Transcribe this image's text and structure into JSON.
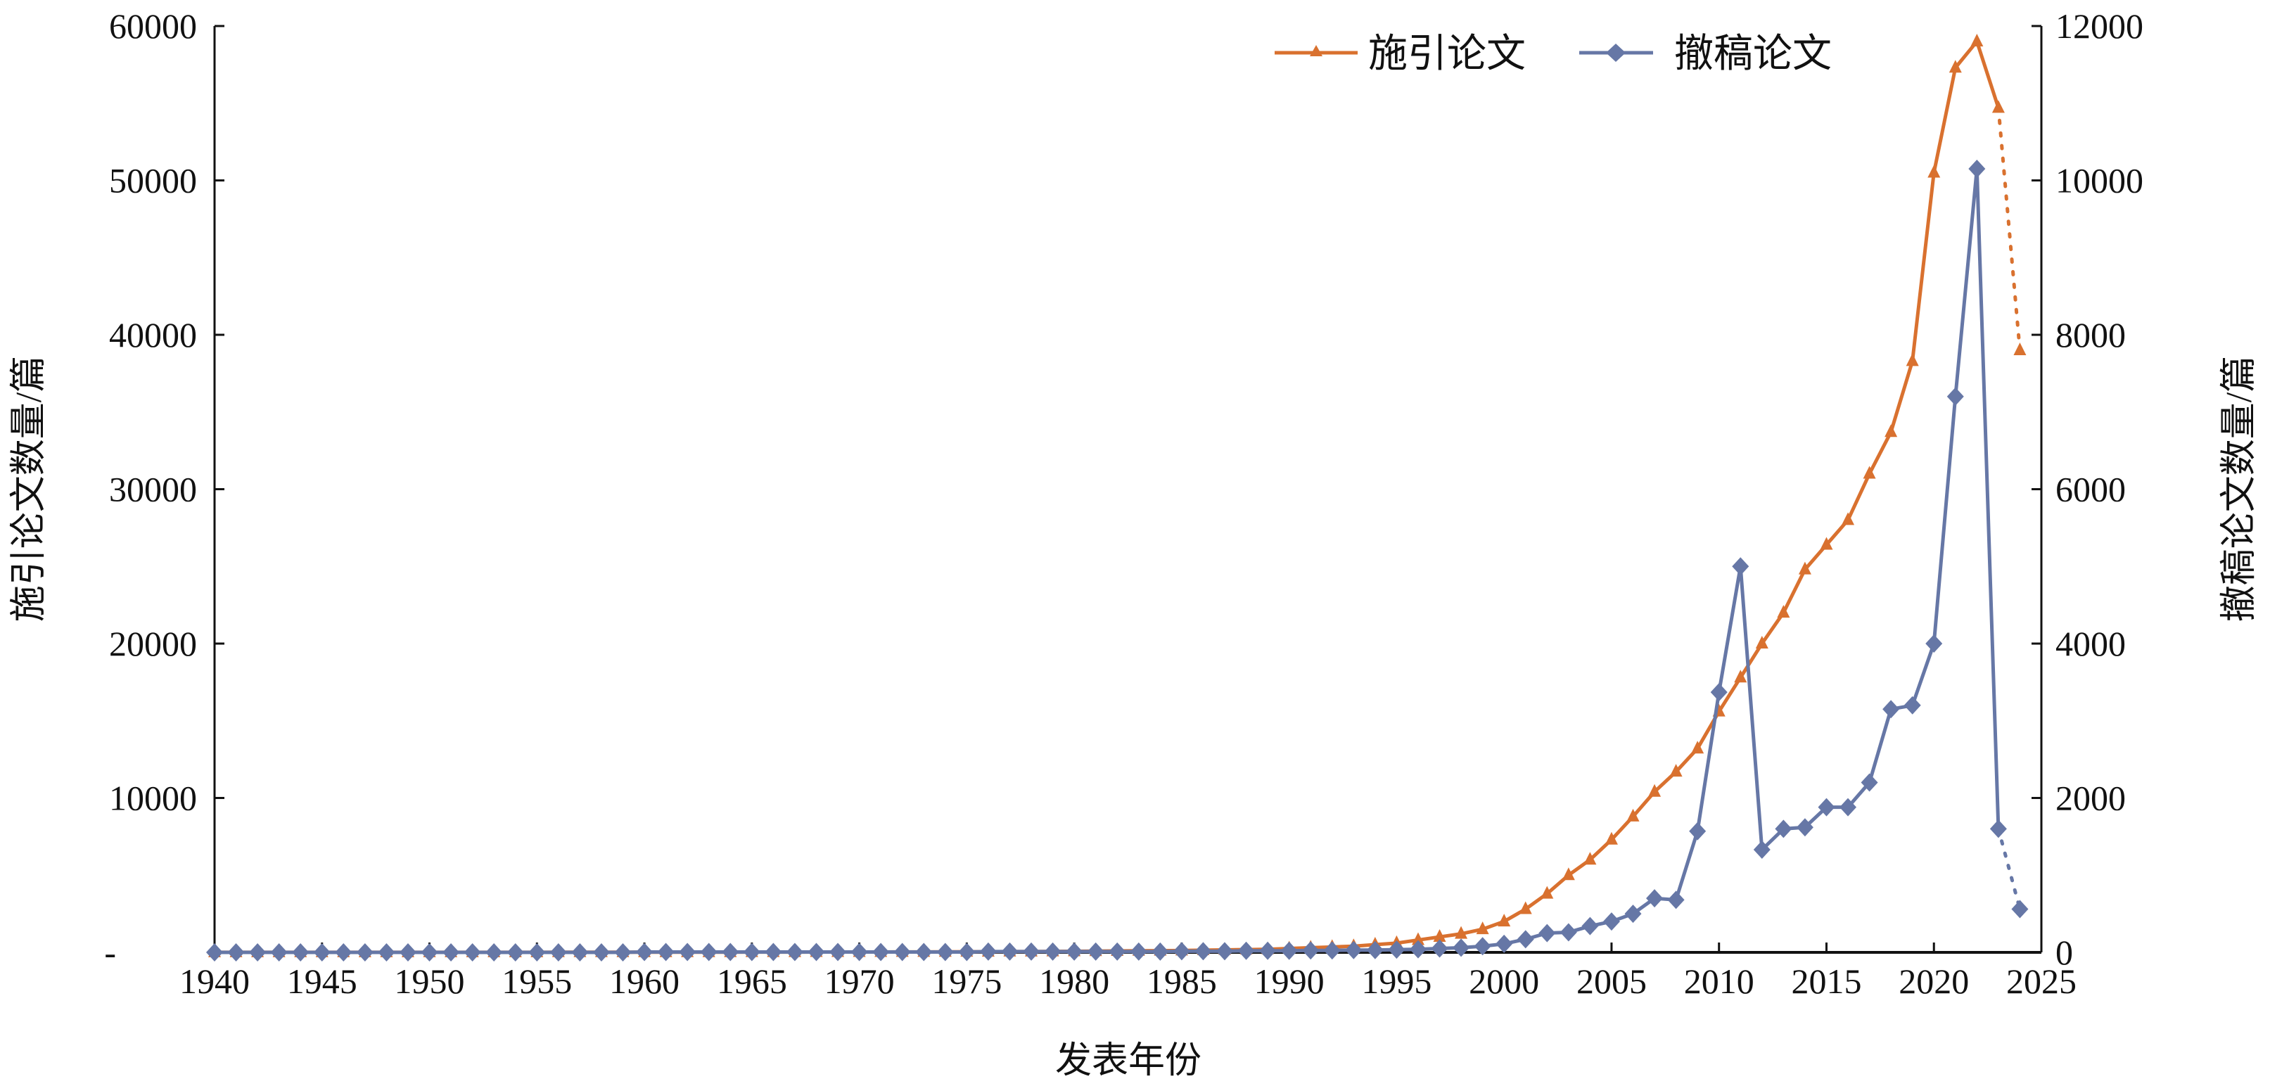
{
  "chart_data": {
    "type": "line",
    "title": "",
    "xlabel": "发表年份",
    "ylabel_left": "施引论文数量/篇",
    "ylabel_right": "撤稿论文数量/篇",
    "xlim": [
      1940,
      2025
    ],
    "ylim_left": [
      0,
      60000
    ],
    "ylim_right": [
      0,
      12000
    ],
    "x_ticks": [
      "1940",
      "1945",
      "1950",
      "1955",
      "1960",
      "1965",
      "1970",
      "1975",
      "1980",
      "1985",
      "1990",
      "1995",
      "2000",
      "2005",
      "2010",
      "2015",
      "2020",
      "2025"
    ],
    "y_ticks_left": [
      "-",
      "10000",
      "20000",
      "30000",
      "40000",
      "50000",
      "60000"
    ],
    "y_ticks_right": [
      "0",
      "2000",
      "4000",
      "6000",
      "8000",
      "10000",
      "12000"
    ],
    "legend_position": "top-right",
    "grid": false,
    "colors": {
      "citing": "#D9712F",
      "retracted": "#6677A6"
    },
    "series": [
      {
        "name": "施引论文",
        "axis": "left",
        "marker": "triangle",
        "x": [
          1940,
          1941,
          1942,
          1943,
          1944,
          1945,
          1946,
          1947,
          1948,
          1949,
          1950,
          1951,
          1952,
          1953,
          1954,
          1955,
          1956,
          1957,
          1958,
          1959,
          1960,
          1961,
          1962,
          1963,
          1964,
          1965,
          1966,
          1967,
          1968,
          1969,
          1970,
          1971,
          1972,
          1973,
          1974,
          1975,
          1976,
          1977,
          1978,
          1979,
          1980,
          1981,
          1982,
          1983,
          1984,
          1985,
          1986,
          1987,
          1988,
          1989,
          1990,
          1991,
          1992,
          1993,
          1994,
          1995,
          1996,
          1997,
          1998,
          1999,
          2000,
          2001,
          2002,
          2003,
          2004,
          2005,
          2006,
          2007,
          2008,
          2009,
          2010,
          2011,
          2012,
          2013,
          2014,
          2015,
          2016,
          2017,
          2018,
          2019,
          2020,
          2021,
          2022,
          2023,
          2024
        ],
        "values": [
          5,
          5,
          5,
          5,
          5,
          5,
          5,
          5,
          5,
          5,
          5,
          5,
          5,
          5,
          5,
          5,
          10,
          10,
          10,
          10,
          10,
          10,
          10,
          10,
          10,
          15,
          15,
          15,
          20,
          20,
          20,
          25,
          30,
          30,
          35,
          40,
          40,
          50,
          50,
          60,
          70,
          80,
          90,
          100,
          110,
          120,
          140,
          160,
          180,
          200,
          250,
          300,
          350,
          400,
          500,
          600,
          800,
          1000,
          1200,
          1500,
          2000,
          2800,
          3800,
          5000,
          6000,
          7300,
          8800,
          10400,
          11700,
          13200,
          15600,
          17800,
          20000,
          22000,
          24800,
          26400,
          28000,
          31000,
          33700,
          38300,
          50500,
          57300,
          59000,
          54700,
          39000
        ],
        "dotted_from_index": 83
      },
      {
        "name": "撤稿论文",
        "axis": "right",
        "marker": "diamond",
        "x": [
          1940,
          1941,
          1942,
          1943,
          1944,
          1945,
          1946,
          1947,
          1948,
          1949,
          1950,
          1951,
          1952,
          1953,
          1954,
          1955,
          1956,
          1957,
          1958,
          1959,
          1960,
          1961,
          1962,
          1963,
          1964,
          1965,
          1966,
          1967,
          1968,
          1969,
          1970,
          1971,
          1972,
          1973,
          1974,
          1975,
          1976,
          1977,
          1978,
          1979,
          1980,
          1981,
          1982,
          1983,
          1984,
          1985,
          1986,
          1987,
          1988,
          1989,
          1990,
          1991,
          1992,
          1993,
          1994,
          1995,
          1996,
          1997,
          1998,
          1999,
          2000,
          2001,
          2002,
          2003,
          2004,
          2005,
          2006,
          2007,
          2008,
          2009,
          2010,
          2011,
          2012,
          2013,
          2014,
          2015,
          2016,
          2017,
          2018,
          2019,
          2020,
          2021,
          2022,
          2023,
          2024
        ],
        "values": [
          0,
          0,
          0,
          0,
          0,
          0,
          0,
          0,
          0,
          0,
          0,
          0,
          0,
          0,
          0,
          0,
          0,
          0,
          0,
          0,
          5,
          5,
          5,
          5,
          5,
          5,
          5,
          5,
          5,
          5,
          5,
          5,
          5,
          5,
          5,
          5,
          10,
          10,
          10,
          10,
          10,
          10,
          10,
          10,
          10,
          15,
          15,
          15,
          20,
          20,
          20,
          25,
          25,
          30,
          30,
          35,
          40,
          50,
          60,
          80,
          110,
          170,
          250,
          260,
          340,
          400,
          500,
          700,
          680,
          1570,
          3370,
          5000,
          1330,
          1600,
          1620,
          1880,
          1880,
          2200,
          3150,
          3200,
          4000,
          7200,
          10150,
          1600,
          560
        ],
        "dotted_from_index": 83
      }
    ]
  }
}
